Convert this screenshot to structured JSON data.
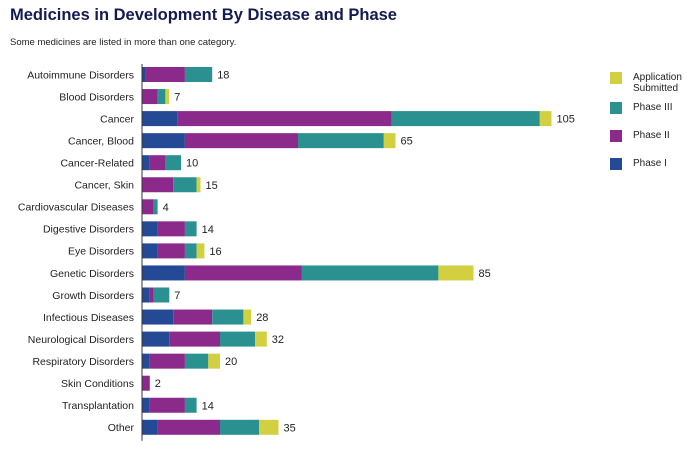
{
  "title": "Medicines in Development By Disease and Phase",
  "subtitle": "Some medicines are listed in more than one category.",
  "colors": {
    "phase1": "#244a96",
    "phase2": "#8c2a8c",
    "phase3": "#2a9090",
    "submitted": "#d2d040"
  },
  "legend": [
    {
      "label": "Application\nSubmitted",
      "color": "#d2d040"
    },
    {
      "label": "Phase III",
      "color": "#2a9090"
    },
    {
      "label": "Phase II",
      "color": "#8c2a8c"
    },
    {
      "label": "Phase I",
      "color": "#244a96"
    }
  ],
  "chart_data": {
    "type": "bar",
    "orientation": "horizontal",
    "stacked": true,
    "title": "Medicines in Development By Disease and Phase",
    "subtitle": "Some medicines are listed in more than one category.",
    "xlim": [
      0,
      105
    ],
    "categories": [
      "Autoimmune Disorders",
      "Blood Disorders",
      "Cancer",
      "Cancer, Blood",
      "Cancer-Related",
      "Cancer, Skin",
      "Cardiovascular Diseases",
      "Digestive Disorders",
      "Eye Disorders",
      "Genetic Disorders",
      "Growth Disorders",
      "Infectious Diseases",
      "Neurological Disorders",
      "Respiratory Disorders",
      "Skin Conditions",
      "Transplantation",
      "Other"
    ],
    "series": [
      {
        "name": "Phase I",
        "values": [
          1,
          0,
          9,
          11,
          2,
          0,
          0,
          4,
          4,
          11,
          2,
          8,
          7,
          2,
          0,
          2,
          4
        ]
      },
      {
        "name": "Phase II",
        "values": [
          10,
          4,
          55,
          29,
          4,
          8,
          3,
          7,
          7,
          30,
          1,
          10,
          13,
          9,
          2,
          9,
          16
        ]
      },
      {
        "name": "Phase III",
        "values": [
          7,
          2,
          38,
          22,
          4,
          6,
          1,
          3,
          3,
          35,
          4,
          8,
          9,
          6,
          0,
          3,
          10
        ]
      },
      {
        "name": "Application Submitted",
        "values": [
          0,
          1,
          3,
          3,
          0,
          1,
          0,
          0,
          2,
          9,
          0,
          2,
          3,
          3,
          0,
          0,
          5
        ]
      }
    ],
    "totals": [
      18,
      7,
      105,
      65,
      10,
      15,
      4,
      14,
      16,
      85,
      7,
      28,
      32,
      20,
      2,
      14,
      35
    ],
    "legend_position": "right"
  }
}
